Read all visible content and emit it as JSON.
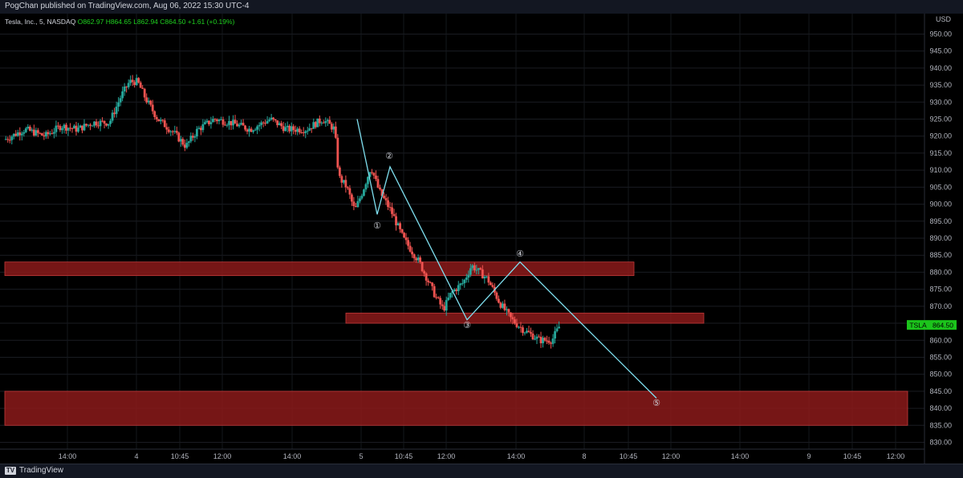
{
  "publisher_line": "PogChan published on TradingView.com, Aug 06, 2022 15:30 UTC-4",
  "brand": "TradingView",
  "legend": {
    "symbol": "Tesla, Inc., 5, NASDAQ",
    "open": "O862.97",
    "high": "H864.65",
    "low": "L862.94",
    "close": "C864.50",
    "change": "+1.61 (+0.19%)"
  },
  "currency": "USD",
  "price_tag": {
    "symbol": "TSLA",
    "value": "864.50"
  },
  "colors": {
    "up": "#26a69a",
    "down": "#ef5350",
    "zone": "#8b1a1a",
    "wave": "#7fe0f0",
    "price_tag": "#1bc41b"
  },
  "chart_data": {
    "type": "candlestick",
    "ylim": [
      828,
      956
    ],
    "y_ticks": [
      830,
      835,
      840,
      845,
      850,
      855,
      860,
      865,
      870,
      875,
      880,
      885,
      890,
      895,
      900,
      905,
      910,
      915,
      920,
      925,
      930,
      935,
      940,
      945,
      950
    ],
    "y_tick_labels": [
      "830.00",
      "835.00",
      "840.00",
      "845.00",
      "850.00",
      "855.00",
      "860.00",
      "865.00",
      "870.00",
      "875.00",
      "880.00",
      "885.00",
      "890.00",
      "895.00",
      "900.00",
      "905.00",
      "910.00",
      "915.00",
      "920.00",
      "925.00",
      "930.00",
      "935.00",
      "940.00",
      "945.00",
      "950.00"
    ],
    "x_tick_labels": [
      "14:00",
      "4",
      "10:45",
      "12:00",
      "14:00",
      "5",
      "10:45",
      "12:00",
      "14:00",
      "8",
      "10:45",
      "12:00",
      "14:00",
      "9",
      "10:45",
      "12:00"
    ],
    "price_path": [
      {
        "t": 0,
        "p": 919
      },
      {
        "t": 10,
        "p": 922
      },
      {
        "t": 20,
        "p": 920
      },
      {
        "t": 28,
        "p": 923
      },
      {
        "t": 36,
        "p": 922
      },
      {
        "t": 44,
        "p": 924
      },
      {
        "t": 52,
        "p": 924
      },
      {
        "t": 58,
        "p": 932
      },
      {
        "t": 62,
        "p": 936
      },
      {
        "t": 66,
        "p": 936
      },
      {
        "t": 70,
        "p": 931
      },
      {
        "t": 76,
        "p": 925
      },
      {
        "t": 84,
        "p": 921
      },
      {
        "t": 90,
        "p": 917
      },
      {
        "t": 96,
        "p": 922
      },
      {
        "t": 104,
        "p": 925
      },
      {
        "t": 112,
        "p": 924
      },
      {
        "t": 122,
        "p": 922
      },
      {
        "t": 132,
        "p": 925
      },
      {
        "t": 140,
        "p": 922
      },
      {
        "t": 150,
        "p": 922
      },
      {
        "t": 158,
        "p": 925
      },
      {
        "t": 164,
        "p": 922
      },
      {
        "t": 166,
        "p": 908
      },
      {
        "t": 170,
        "p": 905
      },
      {
        "t": 174,
        "p": 898
      },
      {
        "t": 178,
        "p": 904
      },
      {
        "t": 182,
        "p": 911
      },
      {
        "t": 186,
        "p": 904
      },
      {
        "t": 192,
        "p": 898
      },
      {
        "t": 198,
        "p": 890
      },
      {
        "t": 206,
        "p": 883
      },
      {
        "t": 214,
        "p": 873
      },
      {
        "t": 218,
        "p": 869
      },
      {
        "t": 222,
        "p": 874
      },
      {
        "t": 228,
        "p": 877
      },
      {
        "t": 232,
        "p": 882
      },
      {
        "t": 236,
        "p": 880
      },
      {
        "t": 240,
        "p": 878
      },
      {
        "t": 246,
        "p": 871
      },
      {
        "t": 252,
        "p": 866
      },
      {
        "t": 258,
        "p": 863
      },
      {
        "t": 266,
        "p": 860
      },
      {
        "t": 272,
        "p": 860
      },
      {
        "t": 276,
        "p": 864.5
      }
    ],
    "zones": [
      {
        "from": "start",
        "to": "12:00 (8)",
        "low": 879,
        "high": 883
      },
      {
        "from": "14:00 (5)",
        "to": "12:00 (8)",
        "low": 865,
        "high": 868
      },
      {
        "from": "start",
        "to": "12:00 (9)",
        "low": 835,
        "high": 845
      }
    ],
    "wave_points": [
      {
        "label": "",
        "p": 925
      },
      {
        "label": "①",
        "p": 897
      },
      {
        "label": "②",
        "p": 911
      },
      {
        "label": "③",
        "p": 866
      },
      {
        "label": "④",
        "p": 883
      },
      {
        "label": "",
        "p": 866
      },
      {
        "label": "⑤",
        "p": 843
      }
    ]
  }
}
